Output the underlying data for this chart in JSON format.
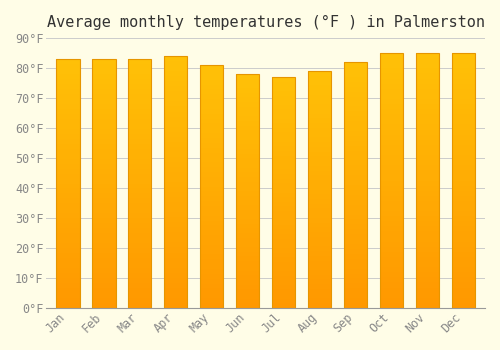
{
  "title": "Average monthly temperatures (°F ) in Palmerston",
  "months": [
    "Jan",
    "Feb",
    "Mar",
    "Apr",
    "May",
    "Jun",
    "Jul",
    "Aug",
    "Sep",
    "Oct",
    "Nov",
    "Dec"
  ],
  "values": [
    83,
    83,
    83,
    84,
    81,
    78,
    77,
    79,
    82,
    85,
    85,
    85
  ],
  "bar_color_top": "#FFC107",
  "bar_color_bottom": "#FF9800",
  "bar_edge_color": "#E69500",
  "background_color": "#FFFDE7",
  "grid_color": "#CCCCCC",
  "ylim": [
    0,
    90
  ],
  "yticks": [
    0,
    10,
    20,
    30,
    40,
    50,
    60,
    70,
    80,
    90
  ],
  "ytick_labels": [
    "0°F",
    "10°F",
    "20°F",
    "30°F",
    "40°F",
    "50°F",
    "60°F",
    "70°F",
    "80°F",
    "90°F"
  ],
  "title_fontsize": 11,
  "tick_fontsize": 8.5,
  "title_color": "#333333",
  "tick_color": "#888888"
}
